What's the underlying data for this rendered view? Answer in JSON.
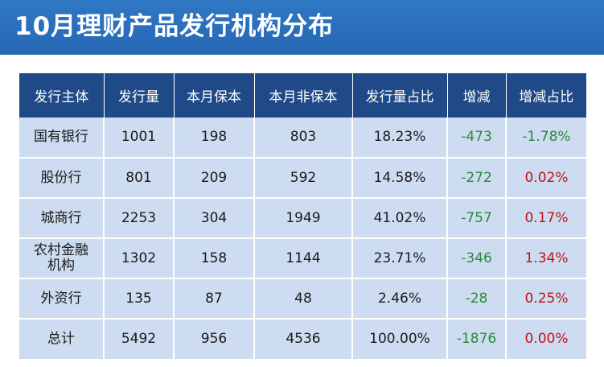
{
  "title": "10月理财产品发行机构分布",
  "colors": {
    "header_bg": "#1f4a87",
    "cell_bg": "#cddcf0",
    "title_bg": "#2a6fbd",
    "negative": "#2a8a3a",
    "positive": "#c0121b"
  },
  "table": {
    "headers": [
      "发行主体",
      "发行量",
      "本月保本",
      "本月非保本",
      "发行量占比",
      "增减",
      "增减占比"
    ],
    "rows": [
      {
        "issuer": "国有银行",
        "volume": "1001",
        "guaranteed": "198",
        "non_guaranteed": "803",
        "share": "18.23%",
        "change": "-473",
        "change_share": "-1.78%",
        "change_share_sign": "neg"
      },
      {
        "issuer": "股份行",
        "volume": "801",
        "guaranteed": "209",
        "non_guaranteed": "592",
        "share": "14.58%",
        "change": "-272",
        "change_share": "0.02%",
        "change_share_sign": "pos"
      },
      {
        "issuer": "城商行",
        "volume": "2253",
        "guaranteed": "304",
        "non_guaranteed": "1949",
        "share": "41.02%",
        "change": "-757",
        "change_share": "0.17%",
        "change_share_sign": "pos"
      },
      {
        "issuer": "农村金融\n机构",
        "volume": "1302",
        "guaranteed": "158",
        "non_guaranteed": "1144",
        "share": "23.71%",
        "change": "-346",
        "change_share": "1.34%",
        "change_share_sign": "pos"
      },
      {
        "issuer": "外资行",
        "volume": "135",
        "guaranteed": "87",
        "non_guaranteed": "48",
        "share": "2.46%",
        "change": "-28",
        "change_share": "0.25%",
        "change_share_sign": "pos"
      },
      {
        "issuer": "总计",
        "volume": "5492",
        "guaranteed": "956",
        "non_guaranteed": "4536",
        "share": "100.00%",
        "change": "-1876",
        "change_share": "0.00%",
        "change_share_sign": "pos"
      }
    ]
  }
}
